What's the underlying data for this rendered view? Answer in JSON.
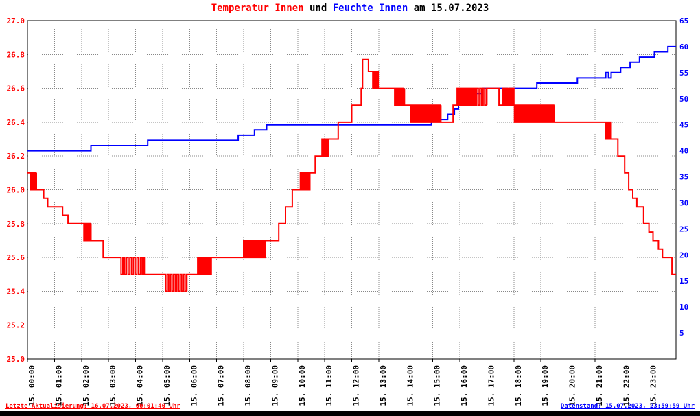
{
  "title": {
    "part_temp": "Temperatur Innen",
    "part_und": " und ",
    "part_hum": "Feuchte Innen",
    "part_date": " am 15.07.2023"
  },
  "footer": {
    "left": "Letzte Aktualisierung: 16.07.2023, 00:01:40 Uhr",
    "right": "Datenstand: 15.07.2023, 23:59:59 Uhr"
  },
  "colors": {
    "temperature": "#ff0000",
    "humidity": "#0000ff",
    "grid": "#888888",
    "frame": "#000000"
  },
  "chart_data": {
    "type": "line",
    "title": "Temperatur Innen und Feuchte Innen am 15.07.2023",
    "legend_position": "none",
    "grid": "dotted",
    "x_axis": {
      "unit": "hours",
      "range": [
        0,
        24
      ],
      "tick_labels": [
        "15. 00:00",
        "15. 01:00",
        "15. 02:00",
        "15. 03:00",
        "15. 04:00",
        "15. 05:00",
        "15. 06:00",
        "15. 07:00",
        "15. 08:00",
        "15. 09:00",
        "15. 10:00",
        "15. 11:00",
        "15. 12:00",
        "15. 13:00",
        "15. 14:00",
        "15. 15:00",
        "15. 16:00",
        "15. 17:00",
        "15. 18:00",
        "15. 19:00",
        "15. 20:00",
        "15. 21:00",
        "15. 22:00",
        "15. 23:00"
      ]
    },
    "left_axis": {
      "min": 25.0,
      "max": 27.0,
      "step": 0.2,
      "color": "#ff0000",
      "tick_labels": [
        "27.0",
        "26.8",
        "26.6",
        "26.4",
        "26.2",
        "26.0",
        "25.8",
        "25.6",
        "25.4",
        "25.2",
        "25.0"
      ]
    },
    "right_axis": {
      "min": 0,
      "max": 65,
      "step": 5,
      "color": "#0000ff",
      "tick_labels": [
        "65",
        "60",
        "55",
        "50",
        "45",
        "40",
        "35",
        "30",
        "25",
        "20",
        "15",
        "10",
        "5"
      ]
    },
    "segment_format": "flat:[t_start,t_end,value] | oscillation:[t_start,t_end,low,high,period_hours]",
    "series": [
      {
        "name": "Temperatur Innen",
        "axis": "left",
        "color": "#ff0000",
        "width": 2,
        "segments": [
          [
            0.0,
            0.07,
            26.1
          ],
          [
            0.07,
            0.33,
            26.0,
            26.1,
            0.07
          ],
          [
            0.33,
            0.6,
            26.0
          ],
          [
            0.6,
            0.75,
            25.95
          ],
          [
            0.75,
            1.3,
            25.9
          ],
          [
            1.3,
            1.5,
            25.85
          ],
          [
            1.5,
            2.05,
            25.8
          ],
          [
            2.05,
            2.35,
            25.7,
            25.8,
            0.08
          ],
          [
            2.35,
            2.8,
            25.7
          ],
          [
            2.8,
            3.4,
            25.6
          ],
          [
            3.4,
            4.35,
            25.5,
            25.6,
            0.13
          ],
          [
            4.35,
            5.05,
            25.5
          ],
          [
            5.05,
            5.9,
            25.4,
            25.5,
            0.12
          ],
          [
            5.9,
            6.3,
            25.5
          ],
          [
            6.3,
            6.8,
            25.5,
            25.6,
            0.1
          ],
          [
            6.8,
            8.0,
            25.6
          ],
          [
            8.0,
            8.8,
            25.6,
            25.7,
            0.05
          ],
          [
            8.8,
            9.3,
            25.7
          ],
          [
            9.3,
            9.55,
            25.8
          ],
          [
            9.55,
            9.8,
            25.9
          ],
          [
            9.8,
            10.1,
            26.0
          ],
          [
            10.1,
            10.45,
            26.0,
            26.1,
            0.07
          ],
          [
            10.45,
            10.65,
            26.1
          ],
          [
            10.65,
            10.9,
            26.2
          ],
          [
            10.9,
            11.15,
            26.2,
            26.3,
            0.07
          ],
          [
            11.15,
            11.5,
            26.3
          ],
          [
            11.5,
            12.0,
            26.4
          ],
          [
            12.0,
            12.35,
            26.5
          ],
          [
            12.35,
            12.4,
            26.6
          ],
          [
            12.4,
            12.62,
            26.77
          ],
          [
            12.62,
            12.75,
            26.7
          ],
          [
            12.75,
            12.98,
            26.6,
            26.7,
            0.06
          ],
          [
            12.98,
            13.55,
            26.6
          ],
          [
            13.55,
            13.95,
            26.5,
            26.6,
            0.08
          ],
          [
            13.95,
            14.15,
            26.5
          ],
          [
            14.15,
            15.3,
            26.4,
            26.5,
            0.05
          ],
          [
            15.3,
            15.75,
            26.4
          ],
          [
            15.75,
            15.9,
            26.5
          ],
          [
            15.9,
            16.5,
            26.5,
            26.6,
            0.05
          ],
          [
            16.5,
            17.0,
            26.5,
            26.6,
            0.12
          ],
          [
            17.0,
            17.45,
            26.6
          ],
          [
            17.45,
            17.6,
            26.5
          ],
          [
            17.6,
            18.0,
            26.5,
            26.6,
            0.09
          ],
          [
            18.0,
            19.5,
            26.4,
            26.5,
            0.05
          ],
          [
            19.5,
            21.35,
            26.4
          ],
          [
            21.35,
            21.6,
            26.3,
            26.4,
            0.08
          ],
          [
            21.6,
            21.85,
            26.3
          ],
          [
            21.85,
            22.1,
            26.2
          ],
          [
            22.1,
            22.25,
            26.1
          ],
          [
            22.25,
            22.4,
            26.0
          ],
          [
            22.4,
            22.55,
            25.95
          ],
          [
            22.55,
            22.8,
            25.9
          ],
          [
            22.8,
            23.0,
            25.8
          ],
          [
            23.0,
            23.15,
            25.75
          ],
          [
            23.15,
            23.35,
            25.7
          ],
          [
            23.35,
            23.5,
            25.65
          ],
          [
            23.5,
            23.85,
            25.6
          ],
          [
            23.85,
            24.0,
            25.5
          ]
        ]
      },
      {
        "name": "Feuchte Innen",
        "axis": "right",
        "color": "#0000ff",
        "width": 2,
        "segments": [
          [
            0.0,
            2.35,
            40
          ],
          [
            2.35,
            4.45,
            41
          ],
          [
            4.45,
            7.8,
            42
          ],
          [
            7.8,
            8.4,
            43
          ],
          [
            8.4,
            8.85,
            44
          ],
          [
            8.85,
            14.95,
            45
          ],
          [
            14.95,
            15.55,
            46
          ],
          [
            15.55,
            15.8,
            47
          ],
          [
            15.8,
            15.95,
            48
          ],
          [
            15.95,
            16.05,
            49
          ],
          [
            16.05,
            16.35,
            50
          ],
          [
            16.35,
            16.85,
            51
          ],
          [
            16.85,
            17.75,
            52
          ],
          [
            17.75,
            17.85,
            51
          ],
          [
            17.85,
            18.85,
            52
          ],
          [
            18.85,
            20.35,
            53
          ],
          [
            20.35,
            21.4,
            54
          ],
          [
            21.4,
            21.5,
            55
          ],
          [
            21.5,
            21.6,
            54
          ],
          [
            21.6,
            21.95,
            55
          ],
          [
            21.95,
            22.3,
            56
          ],
          [
            22.3,
            22.65,
            57
          ],
          [
            22.65,
            23.2,
            58
          ],
          [
            23.2,
            23.7,
            59
          ],
          [
            23.7,
            24.0,
            60
          ]
        ]
      }
    ]
  }
}
